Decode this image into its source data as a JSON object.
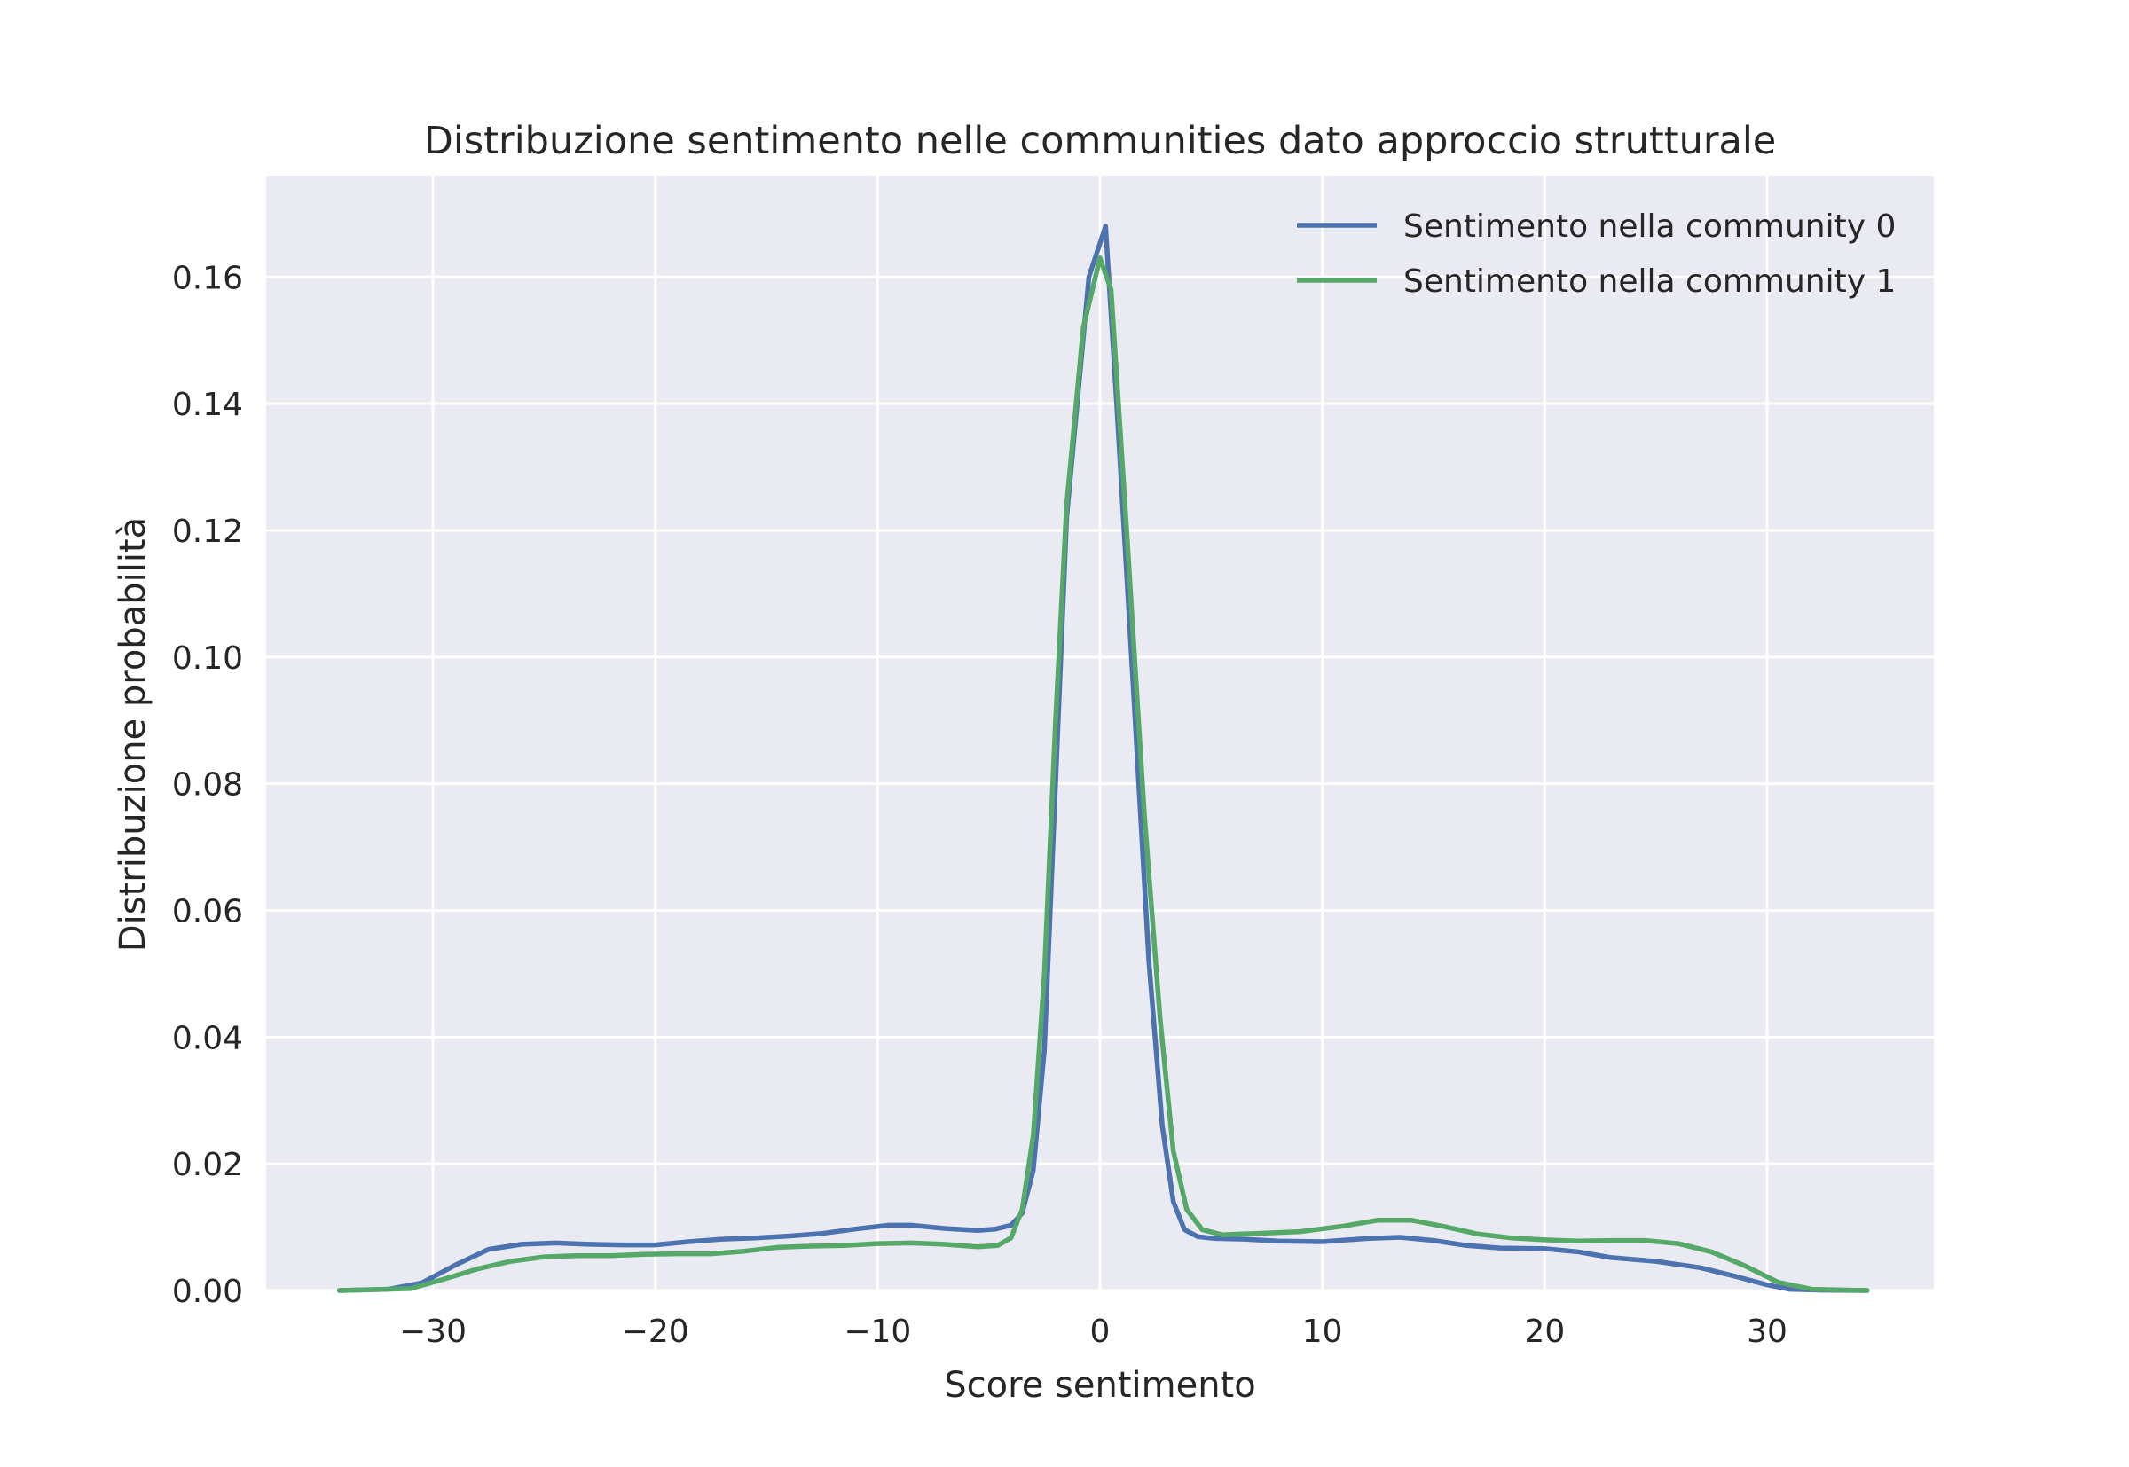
{
  "chart_data": {
    "type": "line",
    "title": "Distribuzione sentimento nelle communities dato approccio strutturale",
    "xlabel": "Score sentimento",
    "ylabel": "Distribuzione probabilità",
    "xlim": [
      -37.5,
      37.5
    ],
    "ylim": [
      0,
      0.176
    ],
    "xticks": [
      -30,
      -20,
      -10,
      0,
      10,
      20,
      30
    ],
    "xtick_labels": [
      "−30",
      "−20",
      "−10",
      "0",
      "10",
      "20",
      "30"
    ],
    "yticks": [
      0,
      0.02,
      0.04,
      0.06,
      0.08,
      0.1,
      0.12,
      0.14,
      0.16
    ],
    "ytick_labels": [
      "0.00",
      "0.02",
      "0.04",
      "0.06",
      "0.08",
      "0.10",
      "0.12",
      "0.14",
      "0.16"
    ],
    "grid": true,
    "legend_position": "top-right",
    "series": [
      {
        "name": "Sentimento nella community 0",
        "color": "#4c72b0",
        "x": [
          -34.2,
          -32,
          -30.5,
          -29,
          -27.5,
          -26,
          -24.5,
          -23,
          -21.5,
          -20,
          -18.5,
          -17,
          -15.5,
          -14,
          -12.5,
          -11,
          -9.5,
          -8.5,
          -7,
          -5.5,
          -4.7,
          -4.0,
          -3.5,
          -3.0,
          -2.5,
          -2.0,
          -1.5,
          -0.5,
          0.25,
          0.75,
          1.5,
          2.2,
          2.8,
          3.3,
          3.8,
          4.4,
          5.2,
          6.5,
          8,
          10,
          12,
          13.5,
          15,
          16.5,
          18,
          20,
          21.5,
          23,
          25,
          27,
          28.5,
          30,
          31,
          32.5,
          34.5
        ],
        "y": [
          0,
          0.0002,
          0.0012,
          0.004,
          0.0065,
          0.0073,
          0.0075,
          0.0073,
          0.0072,
          0.0072,
          0.0077,
          0.0081,
          0.0083,
          0.0086,
          0.009,
          0.0097,
          0.0103,
          0.0103,
          0.0098,
          0.0095,
          0.0097,
          0.0103,
          0.0122,
          0.019,
          0.038,
          0.08,
          0.122,
          0.16,
          0.168,
          0.14,
          0.095,
          0.052,
          0.026,
          0.014,
          0.0096,
          0.0085,
          0.0082,
          0.0081,
          0.0078,
          0.0077,
          0.0082,
          0.0084,
          0.0079,
          0.0071,
          0.0067,
          0.0066,
          0.0061,
          0.0052,
          0.0046,
          0.0036,
          0.0023,
          0.0009,
          0.0002,
          5e-05,
          0
        ]
      },
      {
        "name": "Sentimento nella community 1",
        "color": "#55a868",
        "x": [
          -34.2,
          -31,
          -29.5,
          -28,
          -26.5,
          -25,
          -23.5,
          -22,
          -20.5,
          -19,
          -17.5,
          -16,
          -14.5,
          -13,
          -11.5,
          -10,
          -8.5,
          -7,
          -5.5,
          -4.6,
          -4.0,
          -3.5,
          -3.0,
          -2.5,
          -2.0,
          -1.5,
          -0.75,
          0,
          0.5,
          1.2,
          2.0,
          2.7,
          3.3,
          3.9,
          4.6,
          5.5,
          7,
          9,
          11,
          12.5,
          14,
          15.5,
          17,
          18.5,
          20,
          21.5,
          23,
          24.5,
          26,
          27.5,
          29,
          30.5,
          32,
          34.5
        ],
        "y": [
          0,
          0.0003,
          0.0018,
          0.0034,
          0.0046,
          0.0053,
          0.0055,
          0.0055,
          0.0057,
          0.0058,
          0.0058,
          0.0062,
          0.0068,
          0.007,
          0.0071,
          0.0074,
          0.0075,
          0.0073,
          0.0069,
          0.0071,
          0.0083,
          0.0128,
          0.0245,
          0.05,
          0.09,
          0.124,
          0.152,
          0.163,
          0.158,
          0.12,
          0.075,
          0.043,
          0.022,
          0.0128,
          0.0096,
          0.0088,
          0.009,
          0.0093,
          0.0102,
          0.0111,
          0.0111,
          0.0101,
          0.0089,
          0.0083,
          0.008,
          0.0078,
          0.0079,
          0.0079,
          0.0074,
          0.0061,
          0.0039,
          0.0013,
          0.0002,
          0
        ]
      }
    ]
  }
}
